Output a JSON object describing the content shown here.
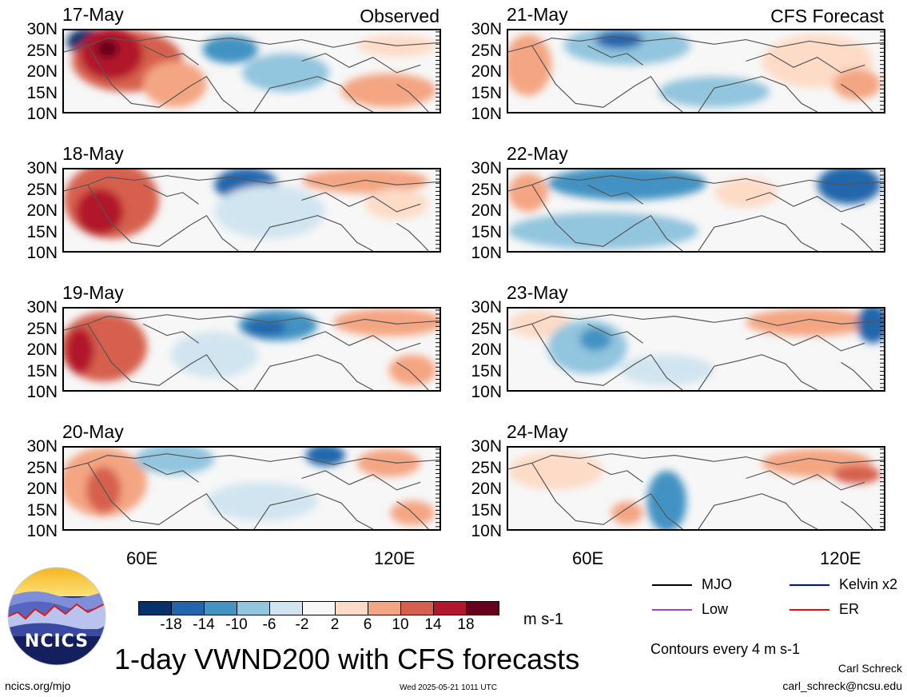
{
  "panels": [
    {
      "date": "17-May",
      "tag": "Observed",
      "pattern": "obs1"
    },
    {
      "date": "18-May",
      "tag": "",
      "pattern": "obs2"
    },
    {
      "date": "19-May",
      "tag": "",
      "pattern": "obs3"
    },
    {
      "date": "20-May",
      "tag": "",
      "pattern": "obs4"
    },
    {
      "date": "21-May",
      "tag": "CFS Forecast",
      "pattern": "fc1"
    },
    {
      "date": "22-May",
      "tag": "",
      "pattern": "fc2"
    },
    {
      "date": "23-May",
      "tag": "",
      "pattern": "fc3"
    },
    {
      "date": "24-May",
      "tag": "",
      "pattern": "fc4"
    }
  ],
  "y_ticks": [
    "30N",
    "25N",
    "20N",
    "15N",
    "10N"
  ],
  "x_ticks": [
    "60E",
    "120E"
  ],
  "colorbar": {
    "colors": [
      "#08306b",
      "#2166ac",
      "#4393c3",
      "#92c5de",
      "#d1e5f0",
      "#f7f7f7",
      "#fddbc7",
      "#f4a582",
      "#d6604d",
      "#b2182b",
      "#67001f"
    ],
    "labels": [
      "-18",
      "-14",
      "-10",
      "-6",
      "-2",
      "2",
      "6",
      "10",
      "14",
      "18"
    ],
    "units": "m s-1"
  },
  "title": "1-day VWND200 with CFS forecasts",
  "legend": [
    {
      "label": "MJO",
      "color": "#000000"
    },
    {
      "label": "Kelvin x2",
      "color": "#0000ff"
    },
    {
      "label": "Low",
      "color": "#a040e0"
    },
    {
      "label": "ER",
      "color": "#ff0000"
    }
  ],
  "contour_note": "Contours every 4 m s-1",
  "logo_text": "NCICS",
  "footer": {
    "left": "ncics.org/mjo",
    "center": "Wed 2025-05-21 1011 UTC",
    "author": "Carl Schreck",
    "email": "carl_schreck@ncsu.edu"
  }
}
